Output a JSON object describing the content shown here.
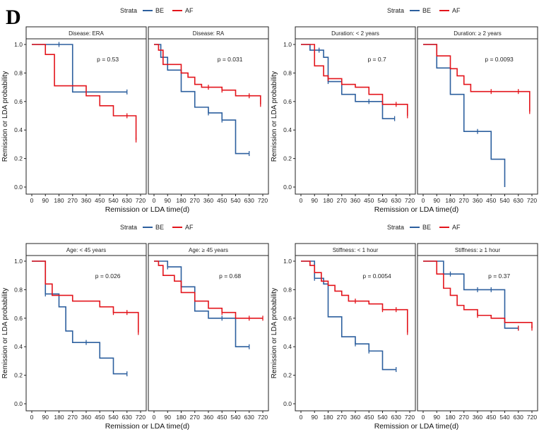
{
  "panel_letter": "D",
  "legend": {
    "title": "Strata",
    "entries": [
      {
        "name": "BE",
        "color": "#2c5f9e"
      },
      {
        "name": "AF",
        "color": "#e3141b"
      }
    ]
  },
  "chart_data": [
    {
      "type": "line",
      "subtype": "kaplan-meier",
      "ylabel": "Remission or LDA probability",
      "xlabel": "Remission or LDA time(d)",
      "xticks": [
        0,
        90,
        180,
        270,
        360,
        450,
        540,
        630,
        720
      ],
      "yticks": [
        "0.0",
        "0.2",
        "0.4",
        "0.6",
        "0.8",
        "1.0"
      ],
      "xlim": [
        0,
        720
      ],
      "ylim": [
        0,
        1
      ],
      "facets": [
        {
          "title": "Disease: ERA",
          "pvalue": "p = 0.53",
          "series": [
            {
              "name": "BE",
              "steps": [
                [
                  0,
                  1
                ],
                [
                  270,
                  0.667
                ],
                [
                  630,
                  0.667
                ]
              ],
              "censors": [
                [
                  180,
                  1
                ],
                [
                  630,
                  0.667
                ]
              ]
            },
            {
              "name": "AF",
              "steps": [
                [
                  0,
                  1
                ],
                [
                  90,
                  0.93
                ],
                [
                  150,
                  0.71
                ],
                [
                  360,
                  0.64
                ],
                [
                  450,
                  0.57
                ],
                [
                  540,
                  0.5
                ],
                [
                  690,
                  0.33
                ]
              ],
              "censors": [
                [
                  630,
                  0.5
                ],
                [
                  690,
                  0.33
                ]
              ]
            }
          ]
        },
        {
          "title": "Disease: RA",
          "pvalue": "p = 0.031",
          "series": [
            {
              "name": "BE",
              "steps": [
                [
                  0,
                  1
                ],
                [
                  45,
                  0.91
                ],
                [
                  90,
                  0.82
                ],
                [
                  180,
                  0.67
                ],
                [
                  270,
                  0.56
                ],
                [
                  360,
                  0.52
                ],
                [
                  450,
                  0.47
                ],
                [
                  540,
                  0.235
                ],
                [
                  630,
                  0.235
                ]
              ],
              "censors": [
                [
                  360,
                  0.52
                ],
                [
                  450,
                  0.47
                ],
                [
                  630,
                  0.235
                ]
              ]
            },
            {
              "name": "AF",
              "steps": [
                [
                  0,
                  1
                ],
                [
                  30,
                  0.96
                ],
                [
                  60,
                  0.86
                ],
                [
                  180,
                  0.8
                ],
                [
                  225,
                  0.77
                ],
                [
                  270,
                  0.72
                ],
                [
                  315,
                  0.7
                ],
                [
                  450,
                  0.68
                ],
                [
                  540,
                  0.64
                ],
                [
                  705,
                  0.58
                ]
              ],
              "censors": [
                [
                  360,
                  0.7
                ],
                [
                  450,
                  0.68
                ],
                [
                  630,
                  0.64
                ],
                [
                  705,
                  0.58
                ]
              ]
            }
          ]
        },
        {
          "title": "Duration: < 2 years",
          "pvalue": "p = 0.7",
          "series": [
            {
              "name": "BE",
              "steps": [
                [
                  0,
                  1
                ],
                [
                  60,
                  0.96
                ],
                [
                  150,
                  0.91
                ],
                [
                  180,
                  0.74
                ],
                [
                  270,
                  0.65
                ],
                [
                  360,
                  0.6
                ],
                [
                  540,
                  0.48
                ],
                [
                  620,
                  0.48
                ]
              ],
              "censors": [
                [
                  120,
                  0.96
                ],
                [
                  180,
                  0.74
                ],
                [
                  450,
                  0.6
                ],
                [
                  620,
                  0.48
                ]
              ]
            },
            {
              "name": "AF",
              "steps": [
                [
                  0,
                  1
                ],
                [
                  90,
                  0.85
                ],
                [
                  150,
                  0.78
                ],
                [
                  180,
                  0.76
                ],
                [
                  270,
                  0.72
                ],
                [
                  360,
                  0.7
                ],
                [
                  450,
                  0.65
                ],
                [
                  540,
                  0.58
                ],
                [
                  705,
                  0.5
                ]
              ],
              "censors": [
                [
                  180,
                  0.76
                ],
                [
                  630,
                  0.58
                ],
                [
                  705,
                  0.5
                ]
              ]
            }
          ]
        },
        {
          "title": "Duration: ≥ 2 years",
          "pvalue": "p = 0.0093",
          "series": [
            {
              "name": "BE",
              "steps": [
                [
                  0,
                  1
                ],
                [
                  90,
                  0.835
                ],
                [
                  180,
                  0.65
                ],
                [
                  270,
                  0.39
                ],
                [
                  450,
                  0.195
                ],
                [
                  540,
                  0.0
                ]
              ],
              "censors": [
                [
                  360,
                  0.39
                ]
              ]
            },
            {
              "name": "AF",
              "steps": [
                [
                  0,
                  1
                ],
                [
                  90,
                  0.92
                ],
                [
                  180,
                  0.83
                ],
                [
                  225,
                  0.78
                ],
                [
                  270,
                  0.72
                ],
                [
                  315,
                  0.67
                ],
                [
                  705,
                  0.53
                ]
              ],
              "censors": [
                [
                  450,
                  0.67
                ],
                [
                  630,
                  0.67
                ],
                [
                  705,
                  0.53
                ]
              ]
            }
          ]
        },
        {
          "title": "Age: < 45 years",
          "pvalue": "p = 0.026",
          "series": [
            {
              "name": "BE",
              "steps": [
                [
                  0,
                  1
                ],
                [
                  90,
                  0.77
                ],
                [
                  180,
                  0.68
                ],
                [
                  225,
                  0.51
                ],
                [
                  270,
                  0.43
                ],
                [
                  450,
                  0.32
                ],
                [
                  540,
                  0.21
                ],
                [
                  630,
                  0.21
                ]
              ],
              "censors": [
                [
                  90,
                  0.77
                ],
                [
                  360,
                  0.43
                ],
                [
                  630,
                  0.21
                ]
              ]
            },
            {
              "name": "AF",
              "steps": [
                [
                  0,
                  1
                ],
                [
                  90,
                  0.84
                ],
                [
                  135,
                  0.76
                ],
                [
                  270,
                  0.72
                ],
                [
                  450,
                  0.68
                ],
                [
                  540,
                  0.64
                ],
                [
                  705,
                  0.5
                ]
              ],
              "censors": [
                [
                  540,
                  0.64
                ],
                [
                  630,
                  0.64
                ],
                [
                  705,
                  0.5
                ]
              ]
            }
          ]
        },
        {
          "title": "Age: ≥ 45 years",
          "pvalue": "p = 0.68",
          "series": [
            {
              "name": "BE",
              "steps": [
                [
                  0,
                  1
                ],
                [
                  90,
                  0.96
                ],
                [
                  180,
                  0.82
                ],
                [
                  270,
                  0.65
                ],
                [
                  360,
                  0.6
                ],
                [
                  540,
                  0.4
                ],
                [
                  630,
                  0.4
                ]
              ],
              "censors": [
                [
                  90,
                  0.96
                ],
                [
                  180,
                  0.82
                ],
                [
                  450,
                  0.6
                ],
                [
                  630,
                  0.4
                ]
              ]
            },
            {
              "name": "AF",
              "steps": [
                [
                  0,
                  1
                ],
                [
                  30,
                  0.97
                ],
                [
                  60,
                  0.9
                ],
                [
                  135,
                  0.86
                ],
                [
                  180,
                  0.78
                ],
                [
                  270,
                  0.72
                ],
                [
                  360,
                  0.67
                ],
                [
                  450,
                  0.64
                ],
                [
                  540,
                  0.6
                ],
                [
                  720,
                  0.6
                ]
              ],
              "censors": [
                [
                  450,
                  0.64
                ],
                [
                  630,
                  0.6
                ],
                [
                  720,
                  0.6
                ]
              ]
            }
          ]
        },
        {
          "title": "Stiffness: < 1 hour",
          "pvalue": "p = 0.0054",
          "series": [
            {
              "name": "BE",
              "steps": [
                [
                  0,
                  1
                ],
                [
                  90,
                  0.88
                ],
                [
                  150,
                  0.84
                ],
                [
                  180,
                  0.61
                ],
                [
                  270,
                  0.47
                ],
                [
                  360,
                  0.42
                ],
                [
                  450,
                  0.37
                ],
                [
                  540,
                  0.24
                ],
                [
                  630,
                  0.24
                ]
              ],
              "censors": [
                [
                  90,
                  0.88
                ],
                [
                  360,
                  0.42
                ],
                [
                  450,
                  0.37
                ],
                [
                  630,
                  0.24
                ]
              ]
            },
            {
              "name": "AF",
              "steps": [
                [
                  0,
                  1
                ],
                [
                  60,
                  0.97
                ],
                [
                  90,
                  0.92
                ],
                [
                  135,
                  0.86
                ],
                [
                  180,
                  0.83
                ],
                [
                  225,
                  0.79
                ],
                [
                  270,
                  0.76
                ],
                [
                  315,
                  0.72
                ],
                [
                  450,
                  0.7
                ],
                [
                  540,
                  0.66
                ],
                [
                  705,
                  0.5
                ]
              ],
              "censors": [
                [
                  360,
                  0.72
                ],
                [
                  540,
                  0.66
                ],
                [
                  630,
                  0.66
                ],
                [
                  705,
                  0.5
                ]
              ]
            }
          ]
        },
        {
          "title": "Stiffness: ≥ 1 hour",
          "pvalue": "p = 0.37",
          "series": [
            {
              "name": "BE",
              "steps": [
                [
                  0,
                  1
                ],
                [
                  135,
                  0.91
                ],
                [
                  270,
                  0.8
                ],
                [
                  540,
                  0.53
                ],
                [
                  630,
                  0.53
                ]
              ],
              "censors": [
                [
                  180,
                  0.91
                ],
                [
                  360,
                  0.8
                ],
                [
                  450,
                  0.8
                ],
                [
                  630,
                  0.53
                ]
              ]
            },
            {
              "name": "AF",
              "steps": [
                [
                  0,
                  1
                ],
                [
                  90,
                  0.91
                ],
                [
                  135,
                  0.81
                ],
                [
                  180,
                  0.76
                ],
                [
                  225,
                  0.69
                ],
                [
                  270,
                  0.66
                ],
                [
                  360,
                  0.62
                ],
                [
                  450,
                  0.6
                ],
                [
                  540,
                  0.57
                ],
                [
                  720,
                  0.53
                ]
              ],
              "censors": [
                [
                  360,
                  0.62
                ],
                [
                  630,
                  0.53
                ],
                [
                  720,
                  0.53
                ]
              ]
            }
          ]
        }
      ]
    }
  ]
}
